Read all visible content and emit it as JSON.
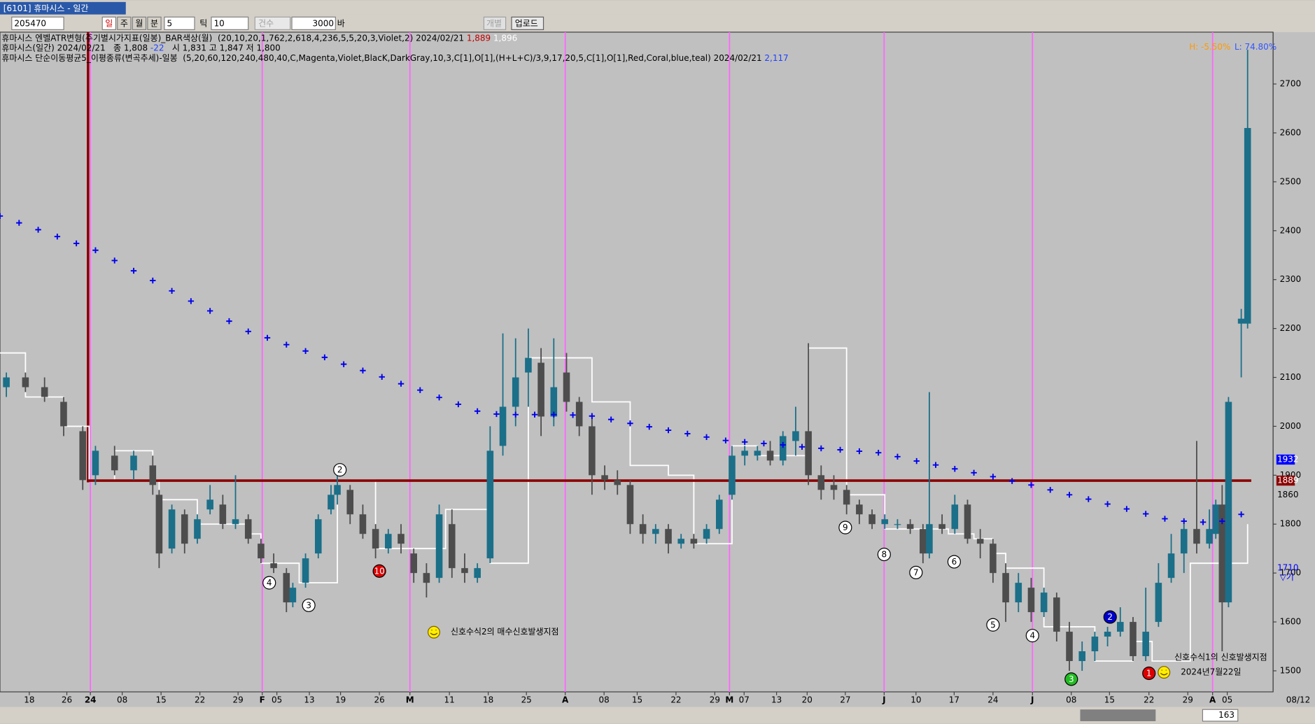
{
  "window": {
    "title": "[6101] 휴마시스 - 일간"
  },
  "toolbar": {
    "code": "205470",
    "periods": [
      "일",
      "주",
      "월",
      "분"
    ],
    "minute": "5",
    "tick_label": "틱",
    "tick": "10",
    "count_label": "건수",
    "count": "3000",
    "bar_label": "바",
    "individual": "개별",
    "upload": "업로드"
  },
  "footer": {
    "scroll_value": "163"
  },
  "chart_data": {
    "type": "candlestick",
    "legend": [
      [
        {
          "text": "휴마시스 엔벨ATR변형(주기별시가지표(일봉)_BAR색상(월)  (20,10,20,1,762,2,618,4,236,5,5,20,3,Violet,2) 2024/02/21 ",
          "color": "#000000"
        },
        {
          "text": "1,889",
          "color": "#c00000"
        },
        {
          "text": " 1,896",
          "color": "#ffffff"
        }
      ],
      [
        {
          "text": "휴마시스(일간) 2024/02/21   종 1,808 ",
          "color": "#000000"
        },
        {
          "text": "-22",
          "color": "#2040ff"
        },
        {
          "text": "   시 1,831 고 1,847 저 1,800",
          "color": "#000000"
        }
      ],
      [
        {
          "text": "휴마시스 단순이동평균5_이평종류(변곡추세)-일봉  (5,20,60,120,240,480,40,C,Magenta,Violet,BlacK,DarkGray,10,3,C[1],O[1],(H+L+C)/3,9,17,20,5,C[1],O[1],Red,Coral,blue,teal) 2024/02/21 ",
          "color": "#000000"
        },
        {
          "text": "2,117",
          "color": "#2040ff"
        }
      ]
    ],
    "hl": [
      {
        "text": "H: -5.50%",
        "color": "#ff9900"
      },
      {
        "text": "L: 74.80%",
        "color": "#3355ff"
      }
    ],
    "xlim": [
      0,
      200
    ],
    "ylim": [
      1457,
      2806
    ],
    "yticks": [
      1500,
      1600,
      1700,
      1800,
      1900,
      2000,
      2100,
      2200,
      2300,
      2400,
      2500,
      2600,
      2700
    ],
    "xticks": [
      {
        "value": 4.6,
        "label": "18"
      },
      {
        "value": 10.5,
        "label": "26"
      },
      {
        "value": 14.2,
        "label": "24"
      },
      {
        "value": 19.2,
        "label": "08"
      },
      {
        "value": 25.3,
        "label": "15"
      },
      {
        "value": 31.4,
        "label": "22"
      },
      {
        "value": 37.4,
        "label": "29"
      },
      {
        "value": 41.2,
        "label": "F"
      },
      {
        "value": 43.5,
        "label": "05"
      },
      {
        "value": 48.6,
        "label": "13"
      },
      {
        "value": 53.5,
        "label": "19"
      },
      {
        "value": 59.6,
        "label": "26"
      },
      {
        "value": 64.4,
        "label": "M"
      },
      {
        "value": 70.6,
        "label": "11"
      },
      {
        "value": 76.7,
        "label": "18"
      },
      {
        "value": 82.7,
        "label": "25"
      },
      {
        "value": 88.8,
        "label": "A"
      },
      {
        "value": 94.9,
        "label": "08"
      },
      {
        "value": 100.1,
        "label": "15"
      },
      {
        "value": 106.2,
        "label": "22"
      },
      {
        "value": 112.3,
        "label": "29"
      },
      {
        "value": 114.6,
        "label": "M"
      },
      {
        "value": 116.9,
        "label": "07"
      },
      {
        "value": 122,
        "label": "13"
      },
      {
        "value": 126.8,
        "label": "20"
      },
      {
        "value": 132.8,
        "label": "27"
      },
      {
        "value": 138.9,
        "label": "J"
      },
      {
        "value": 143.9,
        "label": "10"
      },
      {
        "value": 149.9,
        "label": "17"
      },
      {
        "value": 156,
        "label": "24"
      },
      {
        "value": 162.2,
        "label": "J"
      },
      {
        "value": 168.3,
        "label": "08"
      },
      {
        "value": 174.3,
        "label": "15"
      },
      {
        "value": 180.5,
        "label": "22"
      },
      {
        "value": 186.6,
        "label": "29"
      },
      {
        "value": 190.5,
        "label": "A"
      },
      {
        "value": 192.8,
        "label": "05"
      }
    ],
    "x_end_label": "08/12",
    "month_lines": [
      14.2,
      41.2,
      64.4,
      88.8,
      114.6,
      138.9,
      162.2,
      190.5
    ],
    "month_line_color": "#ff66ff",
    "up_color": "#1b6f88",
    "down_color": "#4d4d4d",
    "candles": {
      "x": [
        1,
        4,
        7,
        10,
        13,
        15,
        18,
        21,
        24,
        25,
        27,
        29,
        31,
        33,
        35,
        37,
        39,
        41,
        43,
        45,
        46,
        48,
        50,
        52,
        53,
        55,
        57,
        59,
        61,
        63,
        65,
        67,
        69,
        71,
        73,
        75,
        77,
        79,
        81,
        83,
        85,
        87,
        89,
        91,
        93,
        95,
        97,
        99,
        101,
        103,
        105,
        107,
        109,
        111,
        113,
        115,
        117,
        119,
        121,
        123,
        125,
        127,
        129,
        131,
        133,
        135,
        137,
        139,
        141,
        143,
        145,
        146,
        148,
        150,
        152,
        154,
        156,
        158,
        160,
        162,
        164,
        166,
        168,
        170,
        172,
        174,
        176,
        178,
        180,
        182,
        184,
        186,
        188,
        190,
        191,
        192,
        193,
        195,
        196
      ],
      "open": [
        2080,
        2100,
        2080,
        2050,
        1990,
        1900,
        1940,
        1910,
        1920,
        1860,
        1750,
        1820,
        1770,
        1830,
        1840,
        1800,
        1810,
        1760,
        1720,
        1700,
        1640,
        1680,
        1740,
        1830,
        1860,
        1870,
        1820,
        1790,
        1750,
        1780,
        1740,
        1700,
        1690,
        1800,
        1710,
        1690,
        1730,
        1960,
        2040,
        2110,
        2130,
        2020,
        2110,
        2050,
        2000,
        1900,
        1890,
        1880,
        1800,
        1780,
        1790,
        1760,
        1770,
        1770,
        1790,
        1860,
        1940,
        1940,
        1950,
        1930,
        1970,
        1990,
        1900,
        1880,
        1870,
        1840,
        1820,
        1800,
        1800,
        1800,
        1790,
        1740,
        1800,
        1790,
        1840,
        1770,
        1760,
        1700,
        1640,
        1670,
        1620,
        1650,
        1580,
        1520,
        1540,
        1570,
        1580,
        1600,
        1530,
        1600,
        1690,
        1740,
        1790,
        1760,
        1780,
        1840,
        1640,
        2210,
        2210
      ],
      "high": [
        2110,
        2110,
        2100,
        2060,
        2000,
        1960,
        1960,
        1950,
        1940,
        1870,
        1840,
        1830,
        1820,
        1880,
        1860,
        1900,
        1820,
        1770,
        1740,
        1710,
        1680,
        1740,
        1820,
        1880,
        1900,
        1880,
        1840,
        1800,
        1790,
        1800,
        1750,
        1720,
        1840,
        1830,
        1740,
        1720,
        2000,
        2190,
        2180,
        2200,
        2160,
        2180,
        2150,
        2060,
        2020,
        1920,
        1910,
        1890,
        1820,
        1800,
        1800,
        1780,
        1780,
        1800,
        1860,
        1960,
        1960,
        1960,
        1970,
        1990,
        2040,
        2170,
        1920,
        1900,
        1880,
        1850,
        1830,
        1820,
        1810,
        1810,
        1800,
        2070,
        1820,
        1860,
        1850,
        1790,
        1770,
        1720,
        1700,
        1690,
        1670,
        1660,
        1600,
        1560,
        1580,
        1590,
        1630,
        1610,
        1670,
        1720,
        1780,
        1800,
        1970,
        1830,
        1850,
        1880,
        2060,
        2240,
        2770
      ],
      "low": [
        2060,
        2070,
        2050,
        1980,
        1870,
        1880,
        1900,
        1890,
        1860,
        1710,
        1740,
        1740,
        1760,
        1820,
        1790,
        1790,
        1760,
        1720,
        1700,
        1620,
        1630,
        1670,
        1730,
        1820,
        1840,
        1800,
        1770,
        1730,
        1740,
        1740,
        1680,
        1650,
        1680,
        1690,
        1680,
        1680,
        1720,
        1940,
        2000,
        2040,
        1980,
        2000,
        2030,
        1980,
        1860,
        1870,
        1860,
        1780,
        1760,
        1760,
        1740,
        1750,
        1750,
        1760,
        1780,
        1850,
        1920,
        1930,
        1920,
        1920,
        1940,
        1880,
        1850,
        1850,
        1820,
        1800,
        1790,
        1790,
        1790,
        1780,
        1720,
        1730,
        1780,
        1780,
        1760,
        1730,
        1680,
        1600,
        1620,
        1600,
        1610,
        1560,
        1500,
        1500,
        1520,
        1550,
        1570,
        1520,
        1520,
        1590,
        1680,
        1700,
        1740,
        1750,
        1770,
        1540,
        1630,
        2100,
        2200
      ],
      "close": [
        2100,
        2080,
        2060,
        2000,
        1890,
        1950,
        1910,
        1940,
        1880,
        1740,
        1830,
        1760,
        1810,
        1850,
        1800,
        1810,
        1770,
        1730,
        1710,
        1640,
        1670,
        1730,
        1810,
        1860,
        1880,
        1820,
        1780,
        1750,
        1780,
        1760,
        1700,
        1680,
        1820,
        1710,
        1700,
        1710,
        1950,
        2040,
        2100,
        2140,
        2020,
        2080,
        2050,
        2000,
        1900,
        1890,
        1880,
        1800,
        1780,
        1790,
        1760,
        1770,
        1760,
        1790,
        1850,
        1940,
        1950,
        1950,
        1930,
        1980,
        1990,
        1900,
        1870,
        1870,
        1840,
        1820,
        1800,
        1810,
        1800,
        1790,
        1740,
        1800,
        1790,
        1840,
        1770,
        1760,
        1700,
        1640,
        1680,
        1620,
        1660,
        1580,
        1520,
        1540,
        1570,
        1580,
        1600,
        1530,
        1580,
        1680,
        1740,
        1790,
        1760,
        1790,
        1840,
        1640,
        2050,
        2220,
        2610
      ]
    },
    "step_line": {
      "color": "#ffffff",
      "x": [
        0,
        3,
        4,
        10,
        14,
        18,
        24,
        25,
        27,
        31,
        39,
        41,
        47,
        53,
        57,
        59,
        67,
        70,
        75,
        77,
        83,
        89,
        93,
        99,
        105,
        109,
        113,
        115,
        119,
        126,
        127,
        131,
        133,
        137,
        139,
        145,
        149,
        153,
        156,
        158,
        162,
        164,
        170,
        172,
        176,
        178,
        181,
        187,
        193,
        196
      ],
      "values": [
        2150,
        2150,
        2060,
        2000,
        1890,
        1950,
        1890,
        1850,
        1850,
        1800,
        1780,
        1720,
        1680,
        1890,
        1890,
        1750,
        1750,
        1830,
        1830,
        1720,
        2140,
        2140,
        2050,
        1920,
        1900,
        1760,
        1760,
        1960,
        1940,
        1940,
        2160,
        2160,
        1860,
        1860,
        1790,
        1790,
        1780,
        1770,
        1740,
        1710,
        1710,
        1590,
        1590,
        1520,
        1520,
        1560,
        1520,
        1720,
        1720,
        1800
      ]
    },
    "cross_line": {
      "color": "#0000ee",
      "x": [
        0,
        3,
        6,
        9,
        12,
        15,
        18,
        21,
        24,
        27,
        30,
        33,
        36,
        39,
        42,
        45,
        48,
        51,
        54,
        57,
        60,
        63,
        66,
        69,
        72,
        75,
        78,
        81,
        84,
        87,
        90,
        93,
        96,
        99,
        102,
        105,
        108,
        111,
        114,
        117,
        120,
        123,
        126,
        129,
        132,
        135,
        138,
        141,
        144,
        147,
        150,
        153,
        156,
        159,
        162,
        165,
        168,
        171,
        174,
        177,
        180,
        183,
        186,
        189,
        192,
        195
      ],
      "values": [
        2430,
        2416,
        2402,
        2388,
        2374,
        2360,
        2339,
        2318,
        2298,
        2277,
        2256,
        2236,
        2215,
        2194,
        2181,
        2167,
        2154,
        2141,
        2127,
        2114,
        2101,
        2087,
        2074,
        2059,
        2045,
        2031,
        2025,
        2024,
        2024,
        2024,
        2023,
        2021,
        2014,
        2006,
        1999,
        1992,
        1985,
        1978,
        1971,
        1968,
        1965,
        1962,
        1958,
        1955,
        1952,
        1949,
        1946,
        1938,
        1929,
        1921,
        1913,
        1905,
        1897,
        1888,
        1880,
        1870,
        1860,
        1851,
        1841,
        1831,
        1821,
        1811,
        1806,
        1804,
        1806,
        1820
      ]
    },
    "hline": {
      "value": 1889,
      "color": "#8b0000"
    },
    "price_tags": [
      {
        "value": 1932,
        "color": "#0000ff",
        "boxed": true
      },
      {
        "value": 1889,
        "color": "#8b0000",
        "boxed": true
      },
      {
        "value": 1860,
        "color": "#000000",
        "boxed": false
      },
      {
        "value": 1710,
        "color": "#0000ff",
        "boxed": false
      }
    ],
    "right_note": "▽기",
    "signals": [
      {
        "label": "2",
        "x": 53.4,
        "y": 1911,
        "color": "#ffffff"
      },
      {
        "label": "4",
        "x": 42.3,
        "y": 1680,
        "color": "#ffffff"
      },
      {
        "label": "3",
        "x": 48.5,
        "y": 1634,
        "color": "#ffffff"
      },
      {
        "label": "10",
        "x": 59.6,
        "y": 1704,
        "color": "#dd0000"
      },
      {
        "label": "9",
        "x": 132.8,
        "y": 1793,
        "color": "#ffffff"
      },
      {
        "label": "8",
        "x": 138.9,
        "y": 1738,
        "color": "#ffffff"
      },
      {
        "label": "7",
        "x": 143.9,
        "y": 1701,
        "color": "#ffffff"
      },
      {
        "label": "6",
        "x": 149.9,
        "y": 1723,
        "color": "#ffffff"
      },
      {
        "label": "5",
        "x": 156,
        "y": 1594,
        "color": "#ffffff"
      },
      {
        "label": "4",
        "x": 162.2,
        "y": 1572,
        "color": "#ffffff"
      },
      {
        "label": "3",
        "x": 168.3,
        "y": 1483,
        "color": "#22bb22"
      },
      {
        "label": "2",
        "x": 174.4,
        "y": 1610,
        "color": "#0000cc"
      },
      {
        "label": "1",
        "x": 180.5,
        "y": 1495,
        "color": "#dd0000"
      }
    ],
    "notes": [
      {
        "text": "신호수식2의 매수신호발생지점",
        "x": 70.8,
        "y": 1579,
        "smiley": true
      },
      {
        "text": "신호수식1의 신호발생지점",
        "x": 184.5,
        "y": 1527,
        "smiley": false
      },
      {
        "text": "2024년7월22일",
        "x": 185.5,
        "y": 1497,
        "smiley": true
      }
    ]
  }
}
